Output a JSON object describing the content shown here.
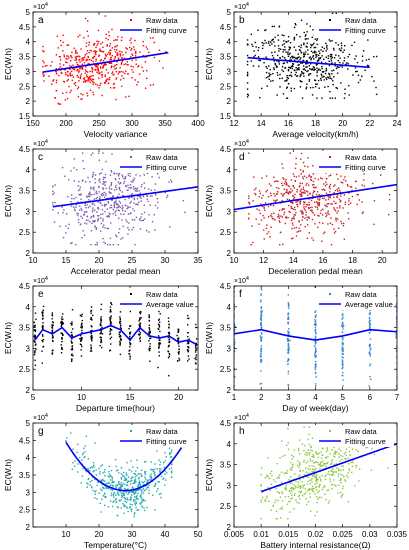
{
  "figure": {
    "background": "#ffffff",
    "axis_color": "#000000"
  },
  "chart_data": [
    {
      "id": "a",
      "type": "scatter",
      "panel_label": "a",
      "xlabel": "Velocity variance",
      "ylabel": "EC(W.h)",
      "y_exponent": "×10",
      "y_exponent_power": "4",
      "xlim": [
        150,
        400
      ],
      "ylim": [
        1.5,
        5
      ],
      "xticks": [
        150,
        200,
        250,
        300,
        350,
        400
      ],
      "xtick_labels": [
        "150",
        "200",
        "250",
        "300",
        "350",
        "400"
      ],
      "yticks": [
        1.5,
        2,
        2.5,
        3,
        3.5,
        4,
        4.5,
        5
      ],
      "ytick_labels": [
        "1.5",
        "2",
        "2.5",
        "3",
        "3.5",
        "4",
        "4.5",
        "5"
      ],
      "legend": {
        "position": "top-right",
        "entries": [
          "Raw data",
          "Fitting curve"
        ]
      },
      "series": [
        {
          "name": "Raw data",
          "kind": "points",
          "color": "#ff0000",
          "n": 520,
          "seed": 11,
          "x_range": [
            165,
            370
          ],
          "x_mean": 245,
          "x_sd": 38,
          "y_sd": 0.5,
          "y_min": 1.9,
          "y_max": 4.9,
          "y_fn": {
            "kind": "line",
            "a": 0.00344,
            "b": 2.41
          }
        },
        {
          "name": "Fitting curve",
          "kind": "line",
          "color": "#0000ff",
          "fn": {
            "kind": "line",
            "a": 0.00344,
            "b": 2.41
          },
          "x": [
            165,
            355
          ]
        }
      ]
    },
    {
      "id": "b",
      "type": "scatter",
      "panel_label": "b",
      "xlabel": "Average velocity(km/h)",
      "ylabel": "EC(W.h)",
      "y_exponent": "×10",
      "y_exponent_power": "4",
      "xlim": [
        12,
        24
      ],
      "ylim": [
        1.5,
        5
      ],
      "xticks": [
        12,
        14,
        16,
        18,
        20,
        22,
        24
      ],
      "xtick_labels": [
        "12",
        "14",
        "16",
        "18",
        "20",
        "22",
        "24"
      ],
      "yticks": [
        1.5,
        2,
        2.5,
        3,
        3.5,
        4,
        4.5,
        5
      ],
      "ytick_labels": [
        "1.5",
        "2",
        "2.5",
        "3",
        "3.5",
        "4",
        "4.5",
        "5"
      ],
      "legend": {
        "position": "top-right",
        "entries": [
          "Raw data",
          "Fitting curve"
        ]
      },
      "series": [
        {
          "name": "Raw data",
          "kind": "points",
          "color": "#000000",
          "n": 520,
          "seed": 23,
          "x_range": [
            13,
            22.5
          ],
          "x_mean": 17,
          "x_sd": 2.0,
          "y_sd": 0.55,
          "y_min": 2.1,
          "y_max": 4.95,
          "y_fn": {
            "kind": "line",
            "a": -0.0364,
            "b": 3.937
          }
        },
        {
          "name": "Fitting curve",
          "kind": "line",
          "color": "#0000ff",
          "fn": {
            "kind": "line",
            "a": -0.0364,
            "b": 3.937
          },
          "x": [
            13,
            22
          ]
        }
      ]
    },
    {
      "id": "c",
      "type": "scatter",
      "panel_label": "c",
      "xlabel": "Accelerator pedal mean",
      "ylabel": "EC(W.h)",
      "y_exponent": "×10",
      "y_exponent_power": "4",
      "xlim": [
        10,
        35
      ],
      "ylim": [
        2,
        4.5
      ],
      "xticks": [
        10,
        15,
        20,
        25,
        30,
        35
      ],
      "xtick_labels": [
        "10",
        "15",
        "20",
        "25",
        "30",
        "35"
      ],
      "yticks": [
        2,
        2.5,
        3,
        3.5,
        4,
        4.5
      ],
      "ytick_labels": [
        "2",
        "2.5",
        "3",
        "3.5",
        "4",
        "4.5"
      ],
      "legend": {
        "position": "top-right",
        "entries": [
          "Raw data",
          "Fitting curve"
        ]
      },
      "series": [
        {
          "name": "Raw data",
          "kind": "points",
          "color": "#7b5bb0",
          "n": 520,
          "seed": 37,
          "x_range": [
            13,
            33
          ],
          "x_mean": 22,
          "x_sd": 3.8,
          "y_sd": 0.48,
          "y_min": 2.2,
          "y_max": 4.4,
          "y_fn": {
            "kind": "line",
            "a": 0.0217,
            "b": 2.83
          }
        },
        {
          "name": "Fitting curve",
          "kind": "line",
          "color": "#0000ff",
          "fn": {
            "kind": "line",
            "a": 0.0217,
            "b": 2.83
          },
          "x": [
            13,
            35
          ]
        }
      ]
    },
    {
      "id": "d",
      "type": "scatter",
      "panel_label": "d",
      "xlabel": "Deceleration pedal mean",
      "ylabel": "EC(W.h)",
      "y_exponent": "×10",
      "y_exponent_power": "4",
      "xlim": [
        10,
        21
      ],
      "ylim": [
        2,
        4.5
      ],
      "xticks": [
        10,
        12,
        14,
        16,
        18,
        20
      ],
      "xtick_labels": [
        "10",
        "12",
        "14",
        "16",
        "18",
        "20"
      ],
      "yticks": [
        2,
        2.5,
        3,
        3.5,
        4,
        4.5
      ],
      "ytick_labels": [
        "2",
        "2.5",
        "3",
        "3.5",
        "4",
        "4.5"
      ],
      "legend": {
        "position": "top-right",
        "entries": [
          "Raw data",
          "Fitting curve"
        ]
      },
      "series": [
        {
          "name": "Raw data",
          "kind": "points",
          "color": "#cc2222",
          "n": 520,
          "seed": 41,
          "x_range": [
            11,
            20.5
          ],
          "x_mean": 15,
          "x_sd": 1.9,
          "y_sd": 0.47,
          "y_min": 2.2,
          "y_max": 4.4,
          "y_fn": {
            "kind": "line",
            "a": 0.0545,
            "b": 2.5
          }
        },
        {
          "name": "Fitting curve",
          "kind": "line",
          "color": "#0000ff",
          "fn": {
            "kind": "line",
            "a": 0.0545,
            "b": 2.5
          },
          "x": [
            10,
            21
          ]
        }
      ]
    },
    {
      "id": "e",
      "type": "scatter",
      "panel_label": "e",
      "xlabel": "Departure time(hour)",
      "ylabel": "EC(W.h)",
      "y_exponent": "×10",
      "y_exponent_power": "4",
      "xlim": [
        5,
        22
      ],
      "ylim": [
        2,
        4.5
      ],
      "xticks": [
        5,
        10,
        15,
        20
      ],
      "xtick_labels": [
        "5",
        "10",
        "15",
        "20"
      ],
      "yticks": [
        2,
        2.5,
        3,
        3.5,
        4,
        4.5
      ],
      "ytick_labels": [
        "2",
        "2.5",
        "3",
        "3.5",
        "4",
        "4.5"
      ],
      "legend": {
        "position": "top-right",
        "entries": [
          "Raw data",
          "Average value"
        ]
      },
      "series": [
        {
          "name": "Raw data",
          "kind": "strips",
          "color": "#000000",
          "seed": 53,
          "jitter": 0.05,
          "y_sd": 0.28,
          "y_min": 2.05,
          "y_max": 4.1,
          "x_centers": [
            5.2,
            6,
            7,
            8,
            9,
            10,
            11,
            12,
            13,
            14,
            15,
            16,
            17,
            18,
            19,
            20,
            21,
            21.8
          ],
          "means": [
            3.2,
            3.45,
            3.35,
            3.5,
            3.25,
            3.35,
            3.4,
            3.45,
            3.55,
            3.45,
            3.2,
            3.5,
            3.3,
            3.25,
            3.3,
            3.15,
            3.2,
            3.1
          ],
          "counts": [
            30,
            28,
            30,
            32,
            30,
            32,
            30,
            30,
            32,
            30,
            28,
            30,
            30,
            28,
            30,
            28,
            26,
            20
          ]
        },
        {
          "name": "Average value",
          "kind": "line",
          "color": "#0000ff",
          "x": [
            5.2,
            6,
            7,
            8,
            9,
            10,
            11,
            12,
            13,
            14,
            15,
            16,
            17,
            18,
            19,
            20,
            21,
            21.8
          ],
          "y": [
            3.2,
            3.45,
            3.35,
            3.5,
            3.25,
            3.35,
            3.4,
            3.45,
            3.55,
            3.45,
            3.2,
            3.5,
            3.3,
            3.25,
            3.3,
            3.15,
            3.2,
            3.1
          ]
        }
      ]
    },
    {
      "id": "f",
      "type": "scatter",
      "panel_label": "f",
      "xlabel": "Day of week(day)",
      "ylabel": "EC(W.h)",
      "y_exponent": "×10",
      "y_exponent_power": "4",
      "xlim": [
        1,
        7
      ],
      "ylim": [
        2,
        4.5
      ],
      "xticks": [
        1,
        2,
        3,
        4,
        5,
        6,
        7
      ],
      "xtick_labels": [
        "1",
        "2",
        "3",
        "4",
        "5",
        "6",
        "7"
      ],
      "yticks": [
        2,
        2.5,
        3,
        3.5,
        4,
        4.5
      ],
      "ytick_labels": [
        "2",
        "2.5",
        "3",
        "3.5",
        "4",
        "4.5"
      ],
      "legend": {
        "position": "top-right",
        "entries": [
          "Raw data",
          "Average value"
        ]
      },
      "series": [
        {
          "name": "Raw data",
          "kind": "strips",
          "color": "#3a86d4",
          "seed": 67,
          "jitter": 0.015,
          "y_sd": 0.55,
          "y_min": 2.1,
          "y_max": 4.6,
          "x_centers": [
            1,
            2,
            3,
            4,
            5,
            6,
            7
          ],
          "means": [
            3.35,
            3.45,
            3.3,
            3.2,
            3.3,
            3.45,
            3.4
          ],
          "counts": [
            70,
            70,
            60,
            70,
            60,
            60,
            55
          ]
        },
        {
          "name": "Average value",
          "kind": "line",
          "color": "#0000ff",
          "x": [
            1,
            2,
            3,
            4,
            5,
            6,
            7
          ],
          "y": [
            3.35,
            3.45,
            3.3,
            3.2,
            3.3,
            3.45,
            3.4
          ]
        }
      ]
    },
    {
      "id": "g",
      "type": "scatter",
      "panel_label": "g",
      "xlabel": "Temperature(°C)",
      "ylabel": "EC(W.h)",
      "y_exponent": "×10",
      "y_exponent_power": "4",
      "xlim": [
        0,
        50
      ],
      "ylim": [
        2,
        5
      ],
      "xticks": [
        10,
        20,
        30,
        40,
        50
      ],
      "xtick_labels": [
        "10",
        "20",
        "30",
        "40",
        "50"
      ],
      "yticks": [
        2,
        2.5,
        3,
        3.5,
        4,
        4.5,
        5
      ],
      "ytick_labels": [
        "2",
        "2.5",
        "3",
        "3.5",
        "4",
        "4.5",
        "5"
      ],
      "legend": {
        "position": "top-right",
        "entries": [
          "Raw data",
          "Fitting curve"
        ]
      },
      "series": [
        {
          "name": "Raw data",
          "kind": "points",
          "color": "#2aa8b0",
          "n": 520,
          "seed": 79,
          "x_range": [
            10,
            42
          ],
          "x_mean": 28,
          "x_sd": 7.5,
          "y_sd": 0.33,
          "y_min": 2.2,
          "y_max": 4.8,
          "y_fn": {
            "kind": "quad",
            "c": 0.0043,
            "x0": 28,
            "k": 3.05
          }
        },
        {
          "name": "Fitting curve",
          "kind": "line",
          "color": "#0000ff",
          "fn": {
            "kind": "quad",
            "c": 0.0043,
            "x0": 28,
            "k": 3.05
          },
          "x": [
            10,
            45
          ]
        }
      ]
    },
    {
      "id": "h",
      "type": "scatter",
      "panel_label": "h",
      "xlabel": "Battery internal resistance(Ω)",
      "ylabel": "EC(W.h)",
      "y_exponent": "×10",
      "y_exponent_power": "4",
      "xlim": [
        0.005,
        0.035
      ],
      "ylim": [
        2,
        4.5
      ],
      "xticks": [
        0.005,
        0.01,
        0.015,
        0.02,
        0.025,
        0.03,
        0.035
      ],
      "xtick_labels": [
        "0.005",
        "0.01",
        "0.015",
        "0.02",
        "0.025",
        "0.03",
        "0.035"
      ],
      "yticks": [
        2,
        2.5,
        3,
        3.5,
        4,
        4.5
      ],
      "ytick_labels": [
        "2",
        "2.5",
        "3",
        "3.5",
        "4",
        "4.5"
      ],
      "legend": {
        "position": "top-right",
        "entries": [
          "Raw data",
          "Fitting curve"
        ]
      },
      "series": [
        {
          "name": "Raw data",
          "kind": "points",
          "color": "#8cc63f",
          "n": 520,
          "seed": 97,
          "x_range": [
            0.01,
            0.035
          ],
          "x_mean": 0.02,
          "x_sd": 0.0048,
          "y_sd": 0.42,
          "y_min": 2.2,
          "y_max": 4.4,
          "y_fn": {
            "kind": "line",
            "a": 46,
            "b": 2.39
          }
        },
        {
          "name": "Fitting curve",
          "kind": "line",
          "color": "#0000ff",
          "fn": {
            "kind": "line",
            "a": 46,
            "b": 2.39
          },
          "x": [
            0.01,
            0.035
          ]
        }
      ]
    }
  ]
}
